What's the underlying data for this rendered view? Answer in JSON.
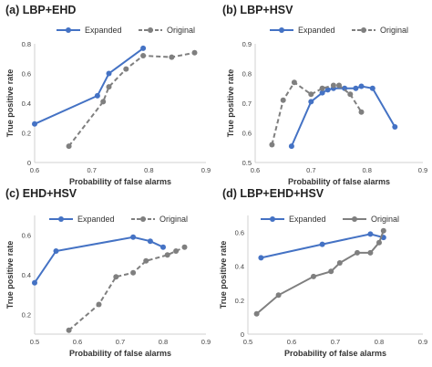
{
  "chart_data": [
    {
      "type": "line",
      "panel_label": "(a)",
      "title": "LBP+EHD",
      "xlabel": "Probability of false alarms",
      "ylabel": "True positive rate",
      "xlim": [
        0.6,
        0.9
      ],
      "ylim": [
        0,
        0.8
      ],
      "xticks": [
        "0.6",
        "0.7",
        "0.8",
        "0.9"
      ],
      "yticks": [
        "0",
        "0.2",
        "0.4",
        "0.6",
        "0.8"
      ],
      "grid": false,
      "legend": "top",
      "series": [
        {
          "name": "Expanded",
          "color": "#4472C4",
          "style": "solid",
          "points": [
            [
              0.6,
              0.26
            ],
            [
              0.71,
              0.45
            ],
            [
              0.73,
              0.6
            ],
            [
              0.79,
              0.77
            ]
          ]
        },
        {
          "name": "Original",
          "color": "#7F7F7F",
          "style": "dashed",
          "points": [
            [
              0.66,
              0.11
            ],
            [
              0.72,
              0.41
            ],
            [
              0.73,
              0.51
            ],
            [
              0.76,
              0.63
            ],
            [
              0.79,
              0.72
            ],
            [
              0.84,
              0.71
            ],
            [
              0.88,
              0.74
            ]
          ]
        }
      ]
    },
    {
      "type": "line",
      "panel_label": "(b)",
      "title": "LBP+HSV",
      "xlabel": "Probability of false alarms",
      "ylabel": "True positive rate",
      "xlim": [
        0.6,
        0.9
      ],
      "ylim": [
        0.5,
        0.9
      ],
      "xticks": [
        "0.6",
        "0.7",
        "0.8",
        "0.9"
      ],
      "yticks": [
        "0.5",
        "0.6",
        "0.7",
        "0.8",
        "0.9"
      ],
      "grid": false,
      "legend": "top",
      "series": [
        {
          "name": "Expanded",
          "color": "#4472C4",
          "style": "solid",
          "points": [
            [
              0.665,
              0.555
            ],
            [
              0.7,
              0.705
            ],
            [
              0.72,
              0.735
            ],
            [
              0.73,
              0.745
            ],
            [
              0.74,
              0.75
            ],
            [
              0.76,
              0.75
            ],
            [
              0.78,
              0.75
            ],
            [
              0.79,
              0.757
            ],
            [
              0.81,
              0.75
            ],
            [
              0.85,
              0.62
            ]
          ]
        },
        {
          "name": "Original",
          "color": "#7F7F7F",
          "style": "dashed",
          "points": [
            [
              0.63,
              0.56
            ],
            [
              0.65,
              0.71
            ],
            [
              0.67,
              0.77
            ],
            [
              0.7,
              0.73
            ],
            [
              0.72,
              0.75
            ],
            [
              0.74,
              0.76
            ],
            [
              0.75,
              0.76
            ],
            [
              0.77,
              0.73
            ],
            [
              0.79,
              0.67
            ]
          ]
        }
      ]
    },
    {
      "type": "line",
      "panel_label": "(c)",
      "title": "EHD+HSV",
      "xlabel": "Probability of false alarms",
      "ylabel": "True positive rate",
      "xlim": [
        0.5,
        0.9
      ],
      "ylim": [
        0.1,
        0.7
      ],
      "xticks": [
        "0.5",
        "0.6",
        "0.7",
        "0.8",
        "0.9"
      ],
      "yticks": [
        "0.2",
        "0.4",
        "0.6"
      ],
      "grid": false,
      "legend": "top",
      "series": [
        {
          "name": "Expanded",
          "color": "#4472C4",
          "style": "solid",
          "points": [
            [
              0.5,
              0.36
            ],
            [
              0.55,
              0.52
            ],
            [
              0.73,
              0.59
            ],
            [
              0.77,
              0.57
            ],
            [
              0.8,
              0.54
            ]
          ]
        },
        {
          "name": "Original",
          "color": "#7F7F7F",
          "style": "dashed",
          "points": [
            [
              0.58,
              0.12
            ],
            [
              0.65,
              0.25
            ],
            [
              0.69,
              0.39
            ],
            [
              0.73,
              0.41
            ],
            [
              0.76,
              0.47
            ],
            [
              0.81,
              0.5
            ],
            [
              0.83,
              0.52
            ],
            [
              0.85,
              0.54
            ]
          ]
        }
      ]
    },
    {
      "type": "line",
      "panel_label": "(d)",
      "title": "LBP+EHD+HSV",
      "xlabel": "Probability of false alarms",
      "ylabel": "True positive rate",
      "xlim": [
        0.5,
        0.9
      ],
      "ylim": [
        0.0,
        0.7
      ],
      "xticks": [
        "0.5",
        "0.6",
        "0.7",
        "0.8",
        "0.9"
      ],
      "yticks": [
        "0",
        "0.2",
        "0.4",
        "0.6"
      ],
      "grid": false,
      "legend": "top",
      "series": [
        {
          "name": "Expanded",
          "color": "#4472C4",
          "style": "solid",
          "points": [
            [
              0.53,
              0.45
            ],
            [
              0.67,
              0.53
            ],
            [
              0.78,
              0.59
            ],
            [
              0.81,
              0.57
            ]
          ]
        },
        {
          "name": "Original",
          "color": "#7F7F7F",
          "style": "solid",
          "points": [
            [
              0.52,
              0.12
            ],
            [
              0.57,
              0.23
            ],
            [
              0.65,
              0.34
            ],
            [
              0.69,
              0.37
            ],
            [
              0.71,
              0.42
            ],
            [
              0.75,
              0.48
            ],
            [
              0.78,
              0.48
            ],
            [
              0.8,
              0.54
            ],
            [
              0.81,
              0.61
            ]
          ]
        }
      ]
    }
  ]
}
